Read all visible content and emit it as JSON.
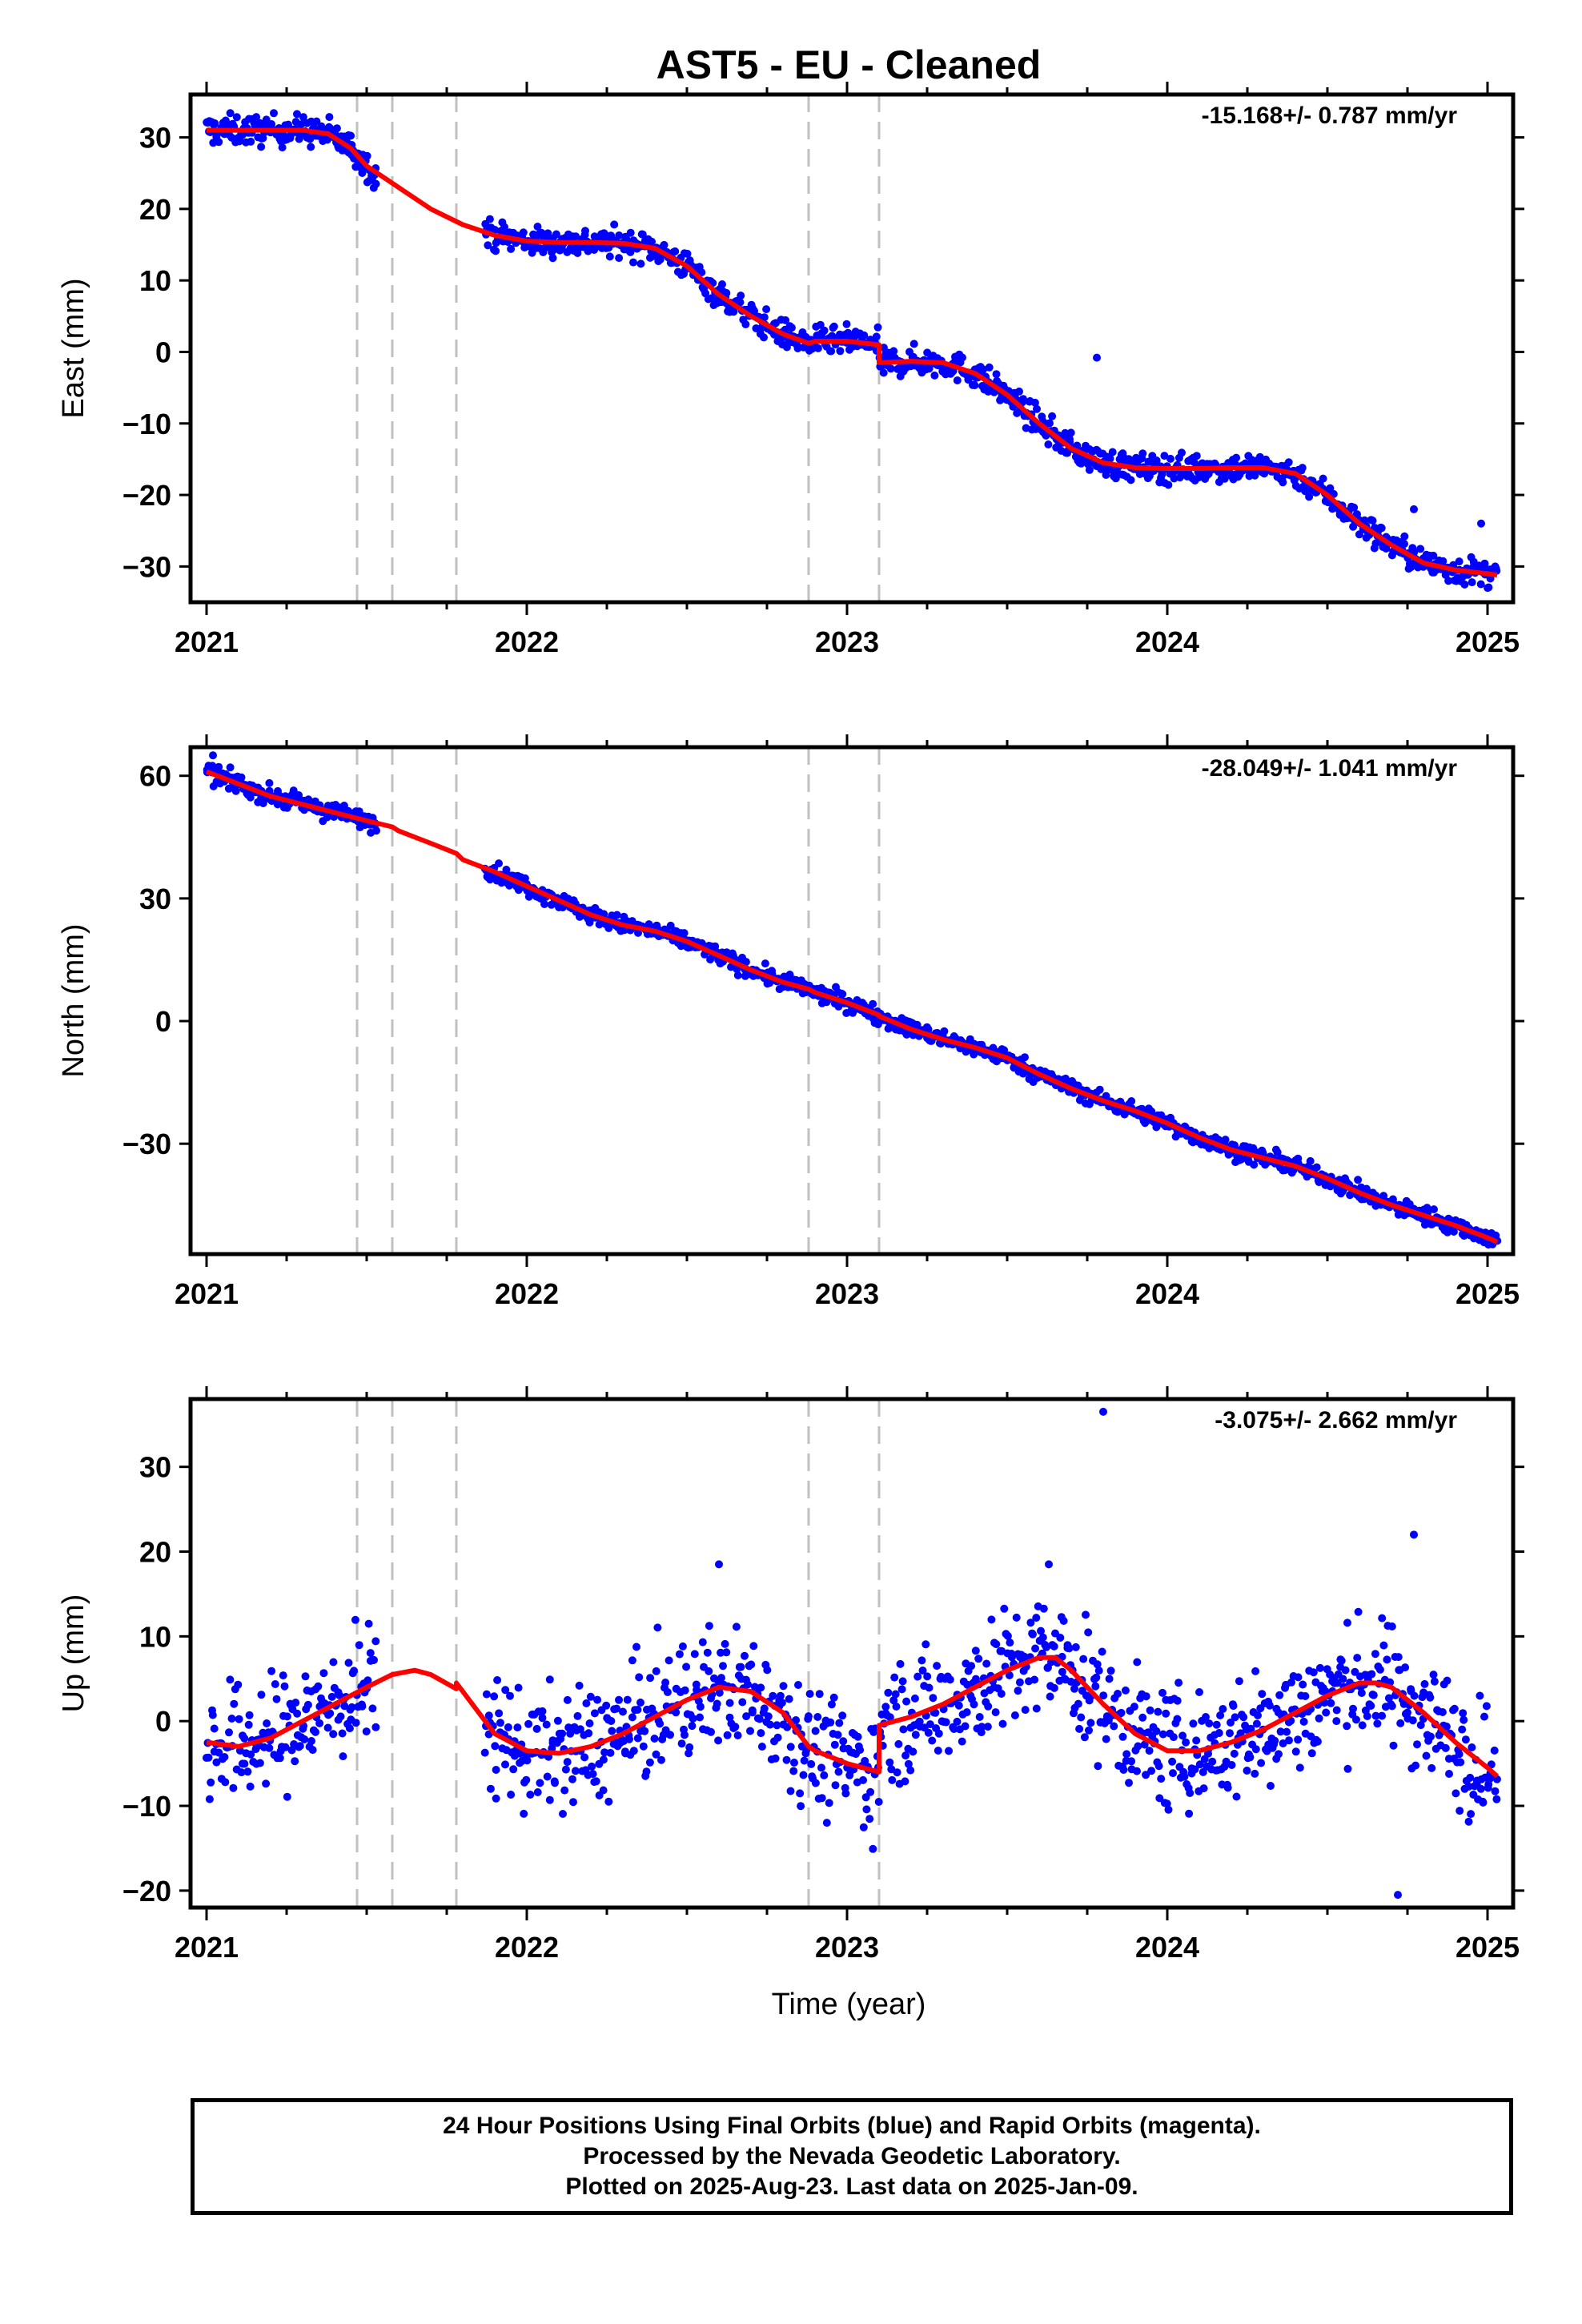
{
  "chart_data": {
    "title": "AST5  - EU - Cleaned",
    "type": "scatter",
    "xlabel": "Time (year)",
    "xlim": [
      2020.95,
      2025.08
    ],
    "xticks": [
      2021,
      2022,
      2023,
      2024,
      2025
    ],
    "xtick_labels": [
      "2021",
      "2022",
      "2023",
      "2024",
      "2025"
    ],
    "event_lines": [
      2021.47,
      2021.58,
      2021.78,
      2022.88,
      2023.1
    ],
    "colors": {
      "points": "#0000ff",
      "model": "#ff0000",
      "events": "#c0c0c0"
    },
    "panels": [
      {
        "ylabel": "East (mm)",
        "ylim": [
          -35,
          36
        ],
        "yticks": [
          30,
          20,
          10,
          0,
          -10,
          -20,
          -30
        ],
        "ytick_labels": [
          "30",
          "20",
          "10",
          "0",
          "−10",
          "−20",
          "−30"
        ],
        "rate_text": "-15.168+/- 0.787 mm/yr",
        "model": {
          "x": [
            2021.0,
            2021.1,
            2021.2,
            2021.3,
            2021.38,
            2021.45,
            2021.5,
            2021.6,
            2021.7,
            2021.8,
            2021.9,
            2022.0,
            2022.1,
            2022.2,
            2022.3,
            2022.4,
            2022.5,
            2022.6,
            2022.7,
            2022.8,
            2022.88,
            2022.9,
            2023.0,
            2023.1,
            2023.1,
            2023.2,
            2023.3,
            2023.4,
            2023.5,
            2023.6,
            2023.7,
            2023.8,
            2023.9,
            2024.0,
            2024.1,
            2024.2,
            2024.3,
            2024.4,
            2024.5,
            2024.6,
            2024.7,
            2024.8,
            2024.9,
            2025.0,
            2025.03
          ],
          "y": [
            31,
            31,
            31,
            31,
            30.5,
            28.5,
            26,
            23,
            20,
            17.8,
            16.3,
            15.5,
            15.3,
            15.3,
            15.2,
            14.5,
            12,
            8,
            5,
            2.5,
            1.2,
            1.5,
            1.5,
            1,
            -1.5,
            -1.3,
            -1.5,
            -3,
            -6,
            -10,
            -13.5,
            -15.5,
            -16.2,
            -16.3,
            -16.3,
            -16.2,
            -16.2,
            -17,
            -20,
            -24,
            -27,
            -29.5,
            -30.5,
            -31,
            -31.2
          ]
        },
        "points": {
          "segments": [
            {
              "x0": 2021.0,
              "x1": 2021.53,
              "spread": 1.5
            },
            {
              "x0": 2021.87,
              "x1": 2025.03,
              "spread": 1.4
            }
          ],
          "outliers": [
            {
              "x": 2023.78,
              "y": -0.8
            },
            {
              "x": 2024.77,
              "y": -22
            },
            {
              "x": 2024.98,
              "y": -24
            }
          ]
        }
      },
      {
        "ylabel": "North (mm)",
        "ylim": [
          -57,
          67
        ],
        "yticks": [
          60,
          30,
          0,
          -30
        ],
        "ytick_labels": [
          "60",
          "30",
          "0",
          "−30"
        ],
        "rate_text": "-28.049+/- 1.041 mm/yr",
        "model": {
          "x": [
            2021.0,
            2021.1,
            2021.2,
            2021.3,
            2021.4,
            2021.5,
            2021.58,
            2021.6,
            2021.7,
            2021.78,
            2021.8,
            2021.9,
            2022.0,
            2022.1,
            2022.2,
            2022.3,
            2022.4,
            2022.5,
            2022.6,
            2022.7,
            2022.8,
            2022.88,
            2022.9,
            2023.0,
            2023.1,
            2023.1,
            2023.2,
            2023.3,
            2023.4,
            2023.5,
            2023.6,
            2023.7,
            2023.8,
            2023.9,
            2024.0,
            2024.1,
            2024.2,
            2024.3,
            2024.4,
            2024.5,
            2024.6,
            2024.7,
            2024.8,
            2024.9,
            2025.0,
            2025.03
          ],
          "y": [
            61,
            58,
            55,
            53,
            51,
            49,
            47.5,
            46.5,
            43.5,
            41,
            39.5,
            36.5,
            33,
            29.5,
            26,
            23.5,
            22,
            19.5,
            16,
            12.5,
            9.5,
            7.8,
            7,
            4.5,
            1.5,
            1.2,
            -2,
            -4.5,
            -6.5,
            -9,
            -13,
            -16.5,
            -19.5,
            -22,
            -25,
            -28.5,
            -31.5,
            -33.5,
            -35.5,
            -38.5,
            -42,
            -45,
            -47.5,
            -50,
            -53,
            -54
          ]
        },
        "points": {
          "segments": [
            {
              "x0": 2021.0,
              "x1": 2021.53,
              "spread": 1.6
            },
            {
              "x0": 2021.87,
              "x1": 2025.03,
              "spread": 1.5
            }
          ],
          "outliers": [
            {
              "x": 2021.02,
              "y": 65
            }
          ]
        }
      },
      {
        "ylabel": "Up (mm)",
        "ylim": [
          -22,
          38
        ],
        "yticks": [
          30,
          20,
          10,
          0,
          -10,
          -20
        ],
        "ytick_labels": [
          "30",
          "20",
          "10",
          "0",
          "−10",
          "−20"
        ],
        "rate_text": "-3.075+/- 2.662 mm/yr",
        "model": {
          "x": [
            2021.0,
            2021.1,
            2021.2,
            2021.3,
            2021.4,
            2021.5,
            2021.58,
            2021.65,
            2021.7,
            2021.78,
            2021.78,
            2021.85,
            2021.9,
            2022.0,
            2022.1,
            2022.2,
            2022.3,
            2022.4,
            2022.5,
            2022.6,
            2022.7,
            2022.8,
            2022.88,
            2022.9,
            2023.0,
            2023.1,
            2023.1,
            2023.2,
            2023.3,
            2023.4,
            2023.5,
            2023.6,
            2023.65,
            2023.7,
            2023.8,
            2023.9,
            2024.0,
            2024.1,
            2024.2,
            2024.3,
            2024.4,
            2024.5,
            2024.6,
            2024.65,
            2024.7,
            2024.8,
            2024.9,
            2025.0,
            2025.03
          ],
          "y": [
            -2.5,
            -3,
            -2,
            0,
            2,
            4,
            5.5,
            6,
            5.5,
            3.8,
            4.5,
            1,
            -1.5,
            -3.5,
            -3.8,
            -3,
            -1.5,
            0.5,
            2.5,
            4,
            3.5,
            1,
            -3,
            -3.5,
            -5,
            -6,
            -0.5,
            0.5,
            2,
            4,
            6,
            7.5,
            7.5,
            6,
            2,
            -1.5,
            -3.5,
            -3.5,
            -2.5,
            -1,
            1,
            3,
            4.5,
            4.5,
            4,
            1,
            -2.5,
            -5.5,
            -6.5
          ]
        },
        "points": {
          "segments": [
            {
              "x0": 2021.0,
              "x1": 2021.53,
              "spread": 5.0
            },
            {
              "x0": 2021.87,
              "x1": 2025.03,
              "spread": 5.0
            }
          ],
          "outliers": [
            {
              "x": 2023.8,
              "y": 36.5
            },
            {
              "x": 2024.72,
              "y": -20.5
            },
            {
              "x": 2024.77,
              "y": 22
            },
            {
              "x": 2022.6,
              "y": 18.5
            },
            {
              "x": 2023.63,
              "y": 18.5
            }
          ]
        }
      }
    ]
  },
  "footer": {
    "line1": "24 Hour Positions Using Final Orbits (blue) and Rapid Orbits (magenta).",
    "line2": "Processed by the Nevada Geodetic Laboratory.",
    "line3": "Plotted on 2025-Aug-23. Last data on 2025-Jan-09."
  }
}
